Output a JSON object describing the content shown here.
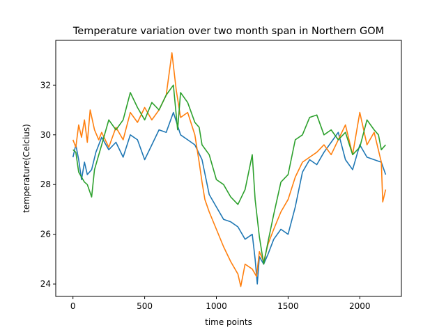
{
  "chart_data": {
    "type": "line",
    "title": "Temperature variation over two month span in Northern GOM",
    "xlabel": "time points",
    "ylabel": "temperature(Celcius)",
    "xlim": [
      -120,
      2290
    ],
    "ylim": [
      23.5,
      33.8
    ],
    "xticks": [
      0,
      500,
      1000,
      1500,
      2000
    ],
    "yticks": [
      24,
      26,
      28,
      30,
      32
    ],
    "grid": false,
    "legend": "none",
    "series": [
      {
        "color": "#1f77b4",
        "x": [
          0,
          20,
          40,
          60,
          80,
          100,
          130,
          160,
          200,
          250,
          300,
          350,
          400,
          450,
          500,
          550,
          600,
          650,
          700,
          750,
          800,
          850,
          900,
          950,
          1000,
          1050,
          1100,
          1150,
          1200,
          1250,
          1270,
          1285,
          1300,
          1330,
          1360,
          1400,
          1450,
          1500,
          1550,
          1600,
          1650,
          1700,
          1750,
          1800,
          1850,
          1900,
          1950,
          2000,
          2050,
          2100,
          2150,
          2180
        ],
        "y": [
          29.1,
          29.6,
          29.0,
          28.2,
          28.9,
          28.4,
          28.6,
          29.3,
          29.9,
          29.4,
          29.7,
          29.1,
          30.0,
          29.8,
          29.0,
          29.6,
          30.2,
          30.1,
          30.9,
          30.0,
          29.8,
          29.6,
          29.0,
          27.6,
          27.1,
          26.6,
          26.5,
          26.3,
          25.8,
          26.0,
          25.0,
          24.0,
          25.1,
          24.8,
          25.2,
          25.8,
          26.2,
          26.0,
          27.1,
          28.5,
          29.0,
          28.8,
          29.3,
          29.7,
          30.1,
          29.0,
          28.6,
          29.6,
          29.1,
          29.0,
          28.9,
          28.4
        ]
      },
      {
        "color": "#ff7f0e",
        "x": [
          0,
          20,
          40,
          60,
          80,
          100,
          120,
          150,
          180,
          200,
          250,
          300,
          350,
          400,
          450,
          500,
          550,
          600,
          650,
          690,
          720,
          750,
          800,
          850,
          880,
          900,
          920,
          950,
          1000,
          1050,
          1100,
          1150,
          1170,
          1200,
          1250,
          1280,
          1300,
          1330,
          1360,
          1400,
          1450,
          1500,
          1550,
          1600,
          1650,
          1700,
          1750,
          1800,
          1850,
          1900,
          1950,
          2000,
          2050,
          2100,
          2150,
          2160,
          2180
        ],
        "y": [
          29.8,
          29.5,
          30.4,
          29.9,
          30.6,
          29.7,
          31.0,
          30.2,
          29.8,
          30.1,
          29.5,
          30.3,
          29.8,
          30.9,
          30.5,
          31.1,
          30.6,
          31.0,
          31.6,
          33.3,
          31.8,
          30.7,
          30.9,
          30.0,
          28.9,
          28.1,
          27.4,
          26.9,
          26.2,
          25.5,
          24.9,
          24.4,
          23.9,
          24.8,
          24.6,
          24.3,
          25.3,
          24.9,
          25.6,
          26.2,
          26.9,
          27.4,
          28.3,
          28.9,
          29.1,
          29.3,
          29.6,
          29.2,
          29.8,
          30.4,
          29.2,
          30.9,
          29.6,
          30.1,
          28.9,
          27.3,
          27.8
        ]
      },
      {
        "color": "#2ca02c",
        "x": [
          0,
          20,
          40,
          60,
          80,
          100,
          130,
          150,
          200,
          250,
          300,
          350,
          400,
          450,
          500,
          550,
          600,
          650,
          700,
          730,
          750,
          800,
          850,
          880,
          900,
          950,
          1000,
          1050,
          1100,
          1150,
          1200,
          1250,
          1270,
          1300,
          1330,
          1360,
          1400,
          1450,
          1500,
          1550,
          1600,
          1650,
          1700,
          1750,
          1800,
          1850,
          1900,
          1950,
          2000,
          2050,
          2100,
          2130,
          2150,
          2180
        ],
        "y": [
          29.4,
          29.3,
          28.5,
          28.3,
          28.1,
          28.0,
          27.5,
          28.6,
          29.6,
          30.6,
          30.2,
          30.6,
          31.7,
          31.1,
          30.6,
          31.3,
          31.0,
          31.6,
          32.0,
          30.2,
          31.7,
          31.3,
          30.5,
          30.3,
          29.6,
          29.2,
          28.2,
          28.0,
          27.5,
          27.2,
          27.8,
          29.2,
          27.4,
          25.9,
          24.8,
          25.7,
          26.8,
          28.1,
          28.4,
          29.8,
          30.0,
          30.7,
          30.8,
          30.0,
          30.2,
          29.8,
          30.1,
          29.2,
          29.5,
          30.6,
          30.2,
          30.0,
          29.4,
          29.6
        ]
      }
    ]
  }
}
